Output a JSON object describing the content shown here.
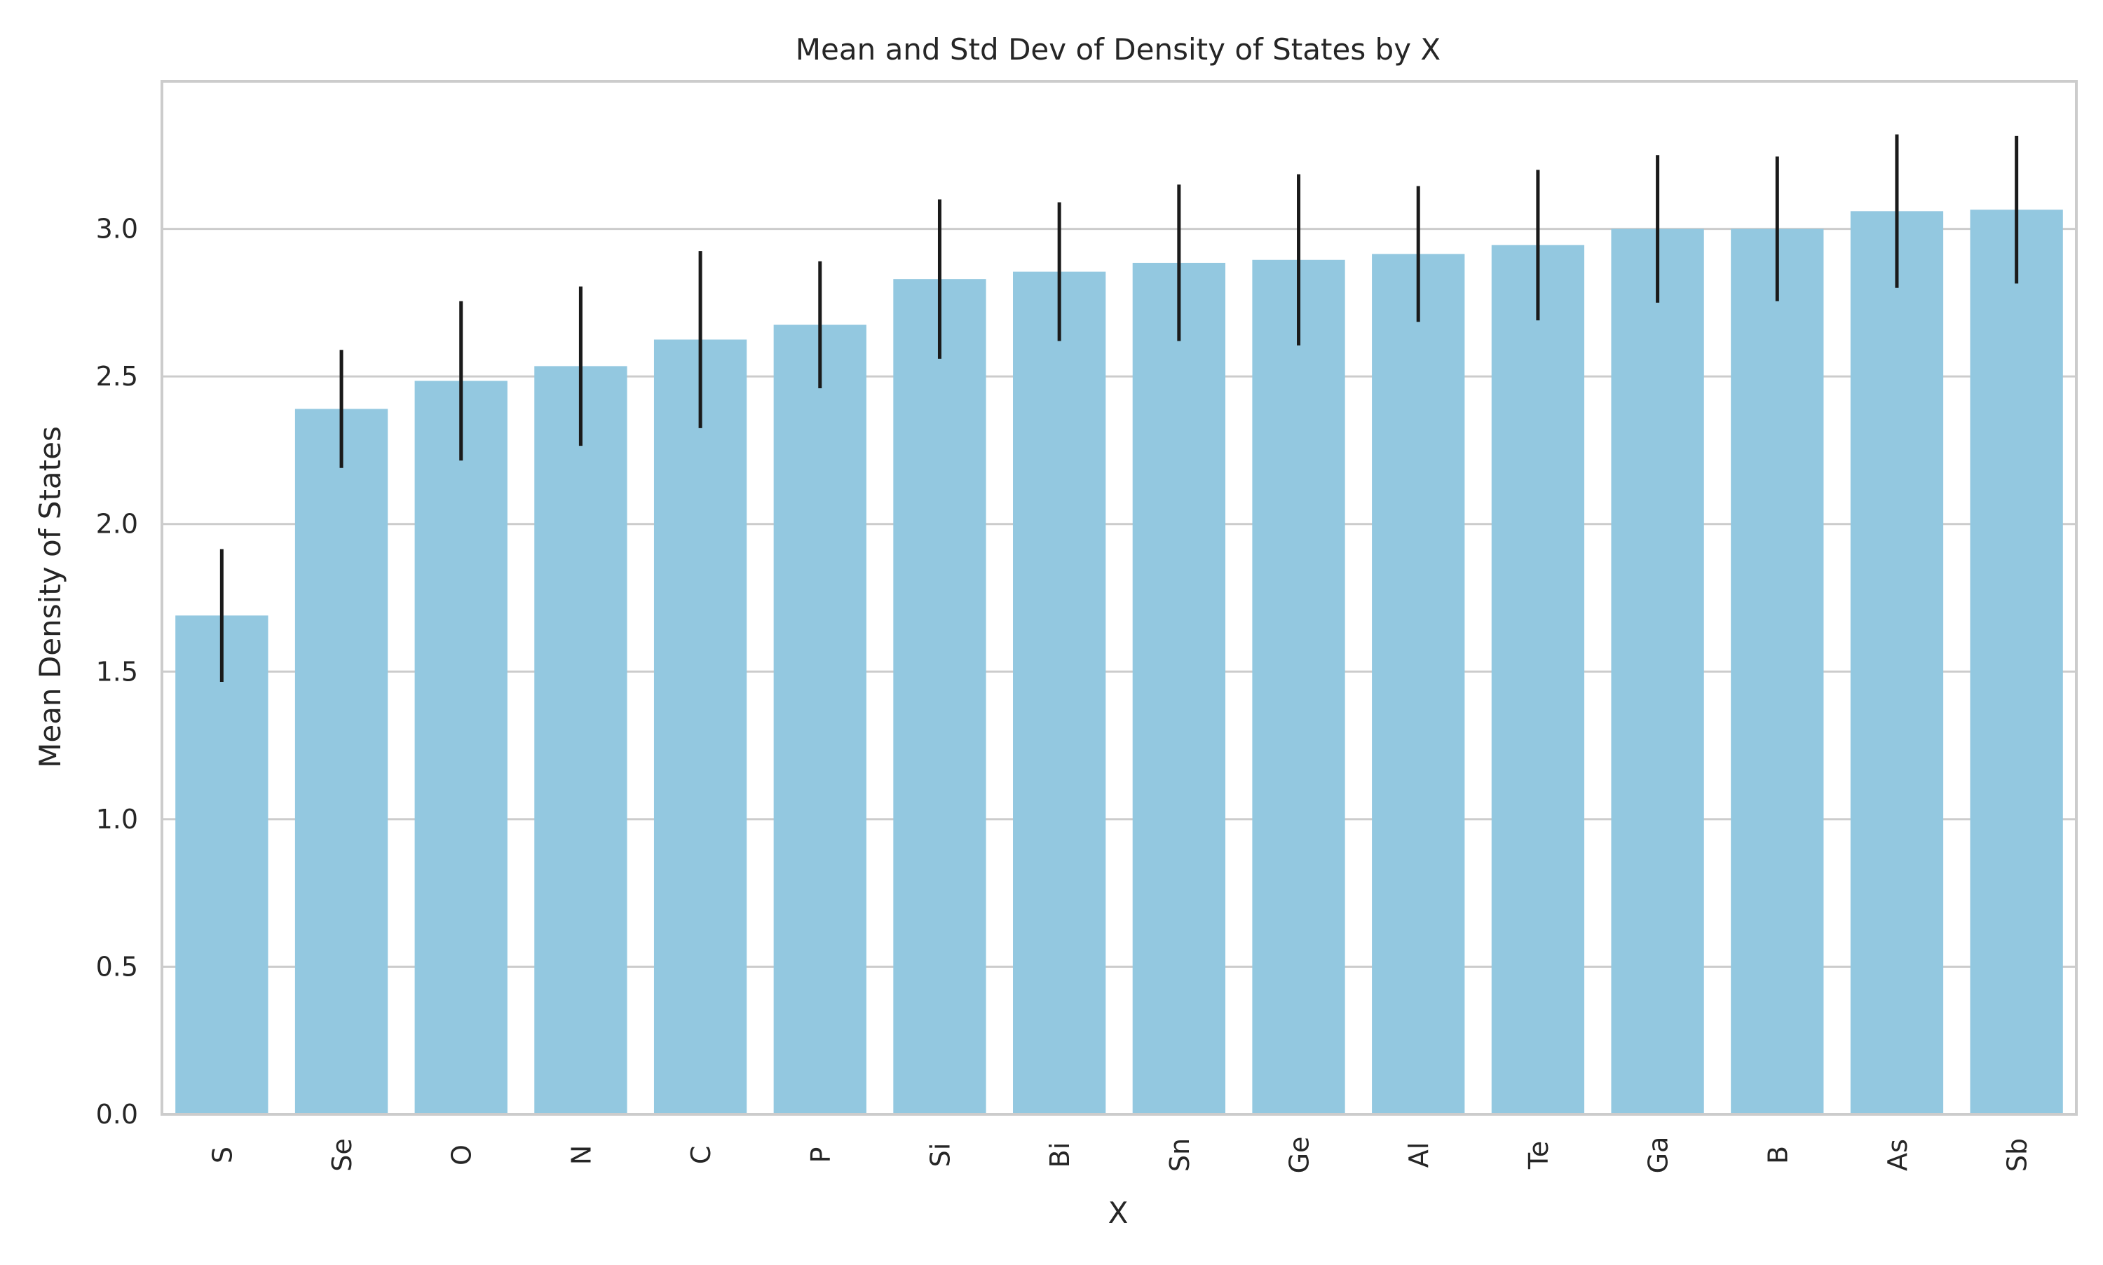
{
  "chart_data": {
    "type": "bar",
    "title": "Mean and Std Dev of Density of States by X",
    "xlabel": "X",
    "ylabel": "Mean Density of States",
    "categories": [
      "S",
      "Se",
      "O",
      "N",
      "C",
      "P",
      "Si",
      "Bi",
      "Sn",
      "Ge",
      "Al",
      "Te",
      "Ga",
      "B",
      "As",
      "Sb"
    ],
    "values": [
      1.69,
      2.39,
      2.485,
      2.535,
      2.625,
      2.675,
      2.83,
      2.855,
      2.885,
      2.895,
      2.915,
      2.945,
      3.0,
      3.0,
      3.06,
      3.065
    ],
    "error": [
      0.225,
      0.2,
      0.27,
      0.27,
      0.3,
      0.215,
      0.27,
      0.235,
      0.265,
      0.29,
      0.23,
      0.255,
      0.25,
      0.245,
      0.26,
      0.25
    ],
    "yticks": [
      0.0,
      0.5,
      1.0,
      1.5,
      2.0,
      2.5,
      3.0
    ],
    "ylim": [
      0,
      3.5
    ],
    "grid": "horizontal",
    "legend": "none",
    "colors": {
      "bar": "#93c8e0",
      "error_bar": "#1a1a1a",
      "grid": "#cccccc",
      "frame": "#cccccc",
      "text": "#262626",
      "background": "#ffffff"
    }
  }
}
